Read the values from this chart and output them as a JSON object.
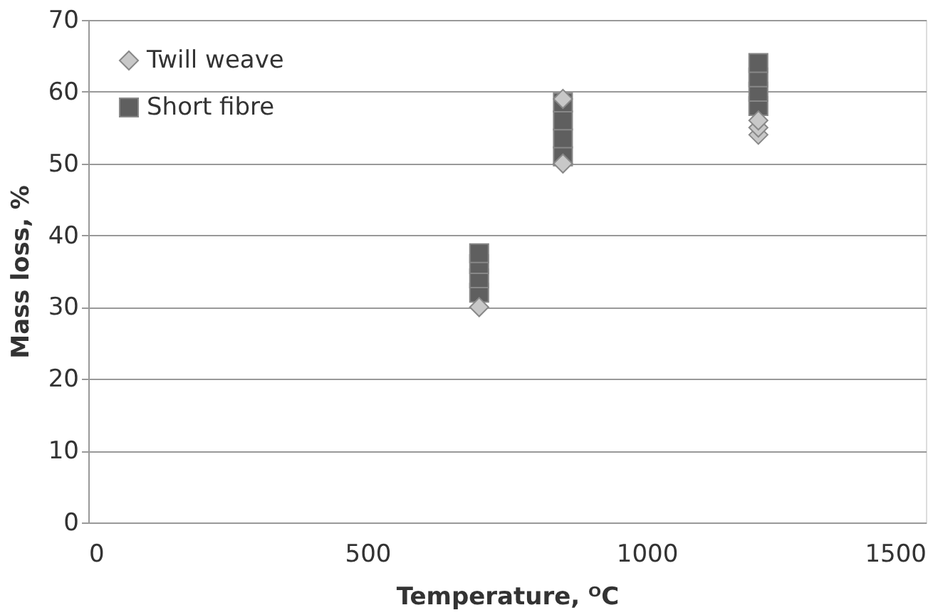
{
  "chart_data": {
    "type": "scatter",
    "xlabel": "Temperature, ᴼC",
    "ylabel": "Mass loss, %",
    "xlim": [
      0,
      1500
    ],
    "xticks": [
      0,
      500,
      {
        "value": 1000,
        "label": "1000"
      },
      {
        "value": 1500,
        "label": "1500"
      }
    ],
    "ylim": [
      0,
      70
    ],
    "yticks": [
      0,
      10,
      20,
      30,
      40,
      50,
      60,
      70
    ],
    "grid": "y",
    "legend": "top left",
    "series": [
      {
        "name": "Twill weave",
        "color": "#c8c8c8",
        "marker": "diamond",
        "x": [
          700,
          850,
          850,
          1200,
          1200,
          1200
        ],
        "values": [
          30,
          50,
          59,
          54,
          55,
          56
        ]
      },
      {
        "name": "Short fibre",
        "color": "#5f5f5f",
        "marker": "square",
        "x": [
          700,
          700,
          700,
          700,
          850,
          850,
          850,
          850,
          1200,
          1200,
          1200,
          1200
        ],
        "values": [
          32,
          34,
          36,
          37.5,
          51,
          53.5,
          56,
          58.5,
          58,
          60,
          62,
          64
        ]
      }
    ]
  }
}
